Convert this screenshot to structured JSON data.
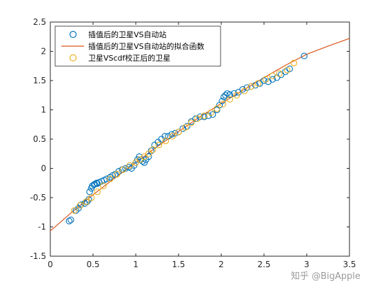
{
  "watermark": "知乎 @BigApple",
  "chart_data": {
    "type": "scatter",
    "xlim": [
      0,
      3.5
    ],
    "ylim": [
      -1.5,
      2.5
    ],
    "xticks": [
      "0",
      "0.5",
      "1",
      "1.5",
      "2",
      "2.5",
      "3",
      "3.5"
    ],
    "yticks": [
      "-1.5",
      "-1",
      "-0.5",
      "0",
      "0.5",
      "1",
      "1.5",
      "2",
      "2.5"
    ],
    "grid": false,
    "legend_position": "top-left",
    "colors": {
      "interp": "#0072BD",
      "fit": "#D95319",
      "corrected": "#EDB120"
    },
    "series": [
      {
        "name": "插值后的卫星VS自动站",
        "kind": "markers",
        "color": "#0072BD",
        "x": [
          0.22,
          0.24,
          0.3,
          0.33,
          0.36,
          0.4,
          0.43,
          0.45,
          0.46,
          0.48,
          0.49,
          0.51,
          0.52,
          0.54,
          0.55,
          0.57,
          0.6,
          0.63,
          0.66,
          0.7,
          0.73,
          0.76,
          0.8,
          0.84,
          0.88,
          0.92,
          0.95,
          0.98,
          1.0,
          1.02,
          1.04,
          1.06,
          1.08,
          1.1,
          1.12,
          1.15,
          1.18,
          1.22,
          1.26,
          1.3,
          1.34,
          1.38,
          1.42,
          1.46,
          1.5,
          1.55,
          1.6,
          1.65,
          1.7,
          1.75,
          1.8,
          1.85,
          1.9,
          1.95,
          1.98,
          2.01,
          2.03,
          2.05,
          2.07,
          2.1,
          2.15,
          2.2,
          2.25,
          2.3,
          2.35,
          2.4,
          2.45,
          2.5,
          2.55,
          2.6,
          2.65,
          2.7,
          2.75,
          2.8,
          2.97
        ],
        "y": [
          -0.9,
          -0.88,
          -0.72,
          -0.68,
          -0.62,
          -0.6,
          -0.57,
          -0.53,
          -0.4,
          -0.34,
          -0.3,
          -0.28,
          -0.27,
          -0.25,
          -0.26,
          -0.24,
          -0.22,
          -0.2,
          -0.18,
          -0.15,
          -0.12,
          -0.1,
          -0.05,
          -0.02,
          0.0,
          0.02,
          0.0,
          0.05,
          0.1,
          0.15,
          0.2,
          0.15,
          0.12,
          0.1,
          0.15,
          0.2,
          0.3,
          0.4,
          0.45,
          0.5,
          0.55,
          0.55,
          0.58,
          0.6,
          0.62,
          0.68,
          0.72,
          0.8,
          0.85,
          0.88,
          0.88,
          0.9,
          0.92,
          1.0,
          1.08,
          1.15,
          1.22,
          1.25,
          1.28,
          1.26,
          1.28,
          1.3,
          1.35,
          1.38,
          1.4,
          1.42,
          1.45,
          1.5,
          1.48,
          1.52,
          1.55,
          1.6,
          1.65,
          1.7,
          1.92
        ]
      },
      {
        "name": "插值后的卫星VS自动站的拟合函数",
        "kind": "line",
        "color": "#D95319",
        "x": [
          0,
          0.25,
          0.5,
          0.75,
          1.0,
          1.25,
          1.5,
          1.75,
          2.0,
          2.25,
          2.5,
          2.75,
          3.0,
          3.25,
          3.5
        ],
        "y": [
          -1.07,
          -0.75,
          -0.45,
          -0.17,
          0.1,
          0.37,
          0.63,
          0.88,
          1.11,
          1.33,
          1.55,
          1.76,
          1.95,
          2.09,
          2.22
        ]
      },
      {
        "name": "卫星VScdf校正后的卫星",
        "kind": "markers",
        "color": "#EDB120",
        "x": [
          0.28,
          0.35,
          0.42,
          0.48,
          0.55,
          0.62,
          0.7,
          0.78,
          0.85,
          0.93,
          1.0,
          1.05,
          1.1,
          1.15,
          1.2,
          1.27,
          1.35,
          1.43,
          1.5,
          1.58,
          1.65,
          1.72,
          1.8,
          1.88,
          1.95,
          2.02,
          2.1,
          2.18,
          2.27,
          2.35,
          2.43,
          2.52,
          2.6,
          2.68,
          2.77,
          2.85
        ],
        "y": [
          -0.72,
          -0.63,
          -0.57,
          -0.5,
          -0.4,
          -0.3,
          -0.18,
          -0.1,
          -0.02,
          0.05,
          0.1,
          0.15,
          0.2,
          0.25,
          0.32,
          0.4,
          0.47,
          0.55,
          0.62,
          0.7,
          0.78,
          0.85,
          0.9,
          0.95,
          1.02,
          1.1,
          1.18,
          1.25,
          1.32,
          1.4,
          1.45,
          1.52,
          1.58,
          1.62,
          1.68,
          1.8
        ]
      }
    ]
  }
}
